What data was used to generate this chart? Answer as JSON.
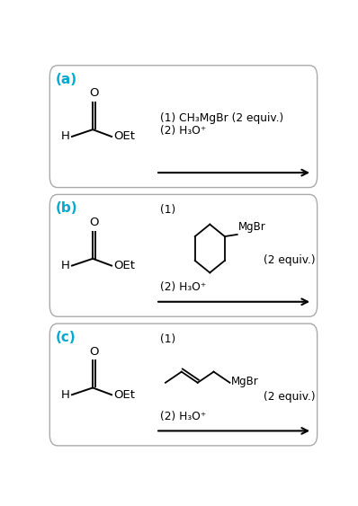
{
  "bg_color": "#ffffff",
  "border_color": "#aaaaaa",
  "label_color": "#00aacc",
  "text_color": "#000000",
  "panels": [
    {
      "label": "(a)",
      "reagent_line1": "(1) CH₃MgBr (2 equiv.)",
      "reagent_line2": "(2) H₃O⁺"
    },
    {
      "label": "(b)",
      "reagent_line1": "(1)",
      "reagent_line2": "(2) H₃O⁺",
      "has_cyclohexyl": true
    },
    {
      "label": "(c)",
      "reagent_line1": "(1)",
      "reagent_line2": "(2) H₃O⁺",
      "has_alkenyl": true
    }
  ]
}
